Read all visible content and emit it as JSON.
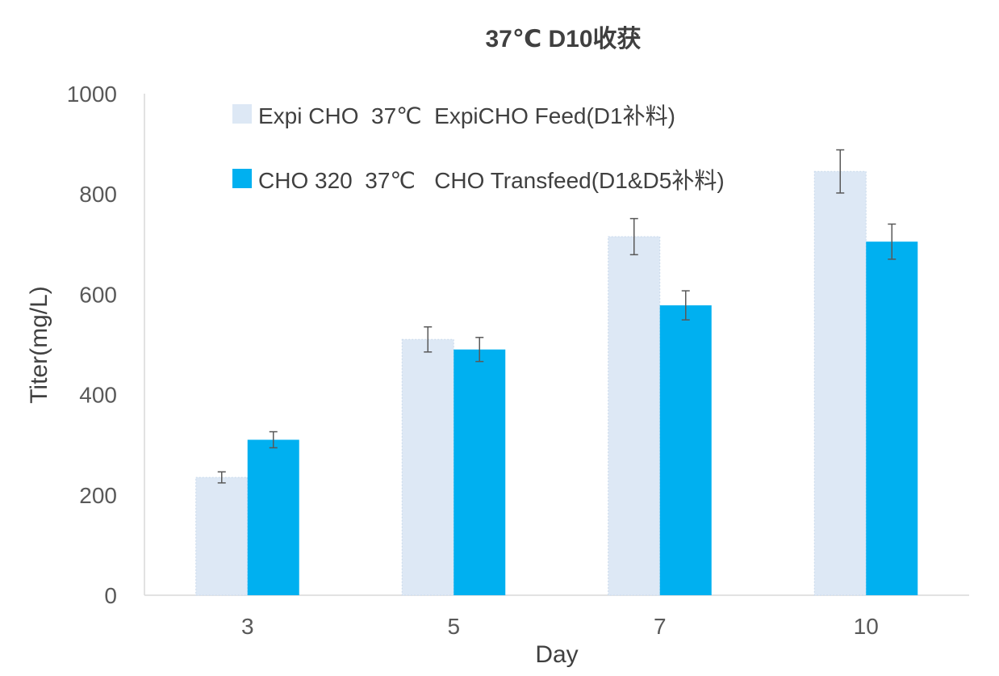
{
  "chart_data": {
    "type": "bar",
    "title": "37℃ D10收获",
    "xlabel": "Day",
    "ylabel": "Titer(mg/L)",
    "categories": [
      "3",
      "5",
      "7",
      "10"
    ],
    "ylim": [
      0,
      1000
    ],
    "yticks": [
      "0",
      "200",
      "400",
      "600",
      "800",
      "1000"
    ],
    "legend_position": "top",
    "series": [
      {
        "name": "Expi CHO  37℃  ExpiCHO Feed(D1补料)",
        "color": "#dde8f5",
        "values": [
          235,
          510,
          715,
          845
        ],
        "errors": [
          11,
          25,
          36,
          43
        ]
      },
      {
        "name": "CHO 320  37℃   CHO Transfeed(D1&D5补料)",
        "color": "#00b0f0",
        "values": [
          310,
          490,
          578,
          705
        ],
        "errors": [
          16,
          24,
          29,
          35
        ]
      }
    ]
  }
}
